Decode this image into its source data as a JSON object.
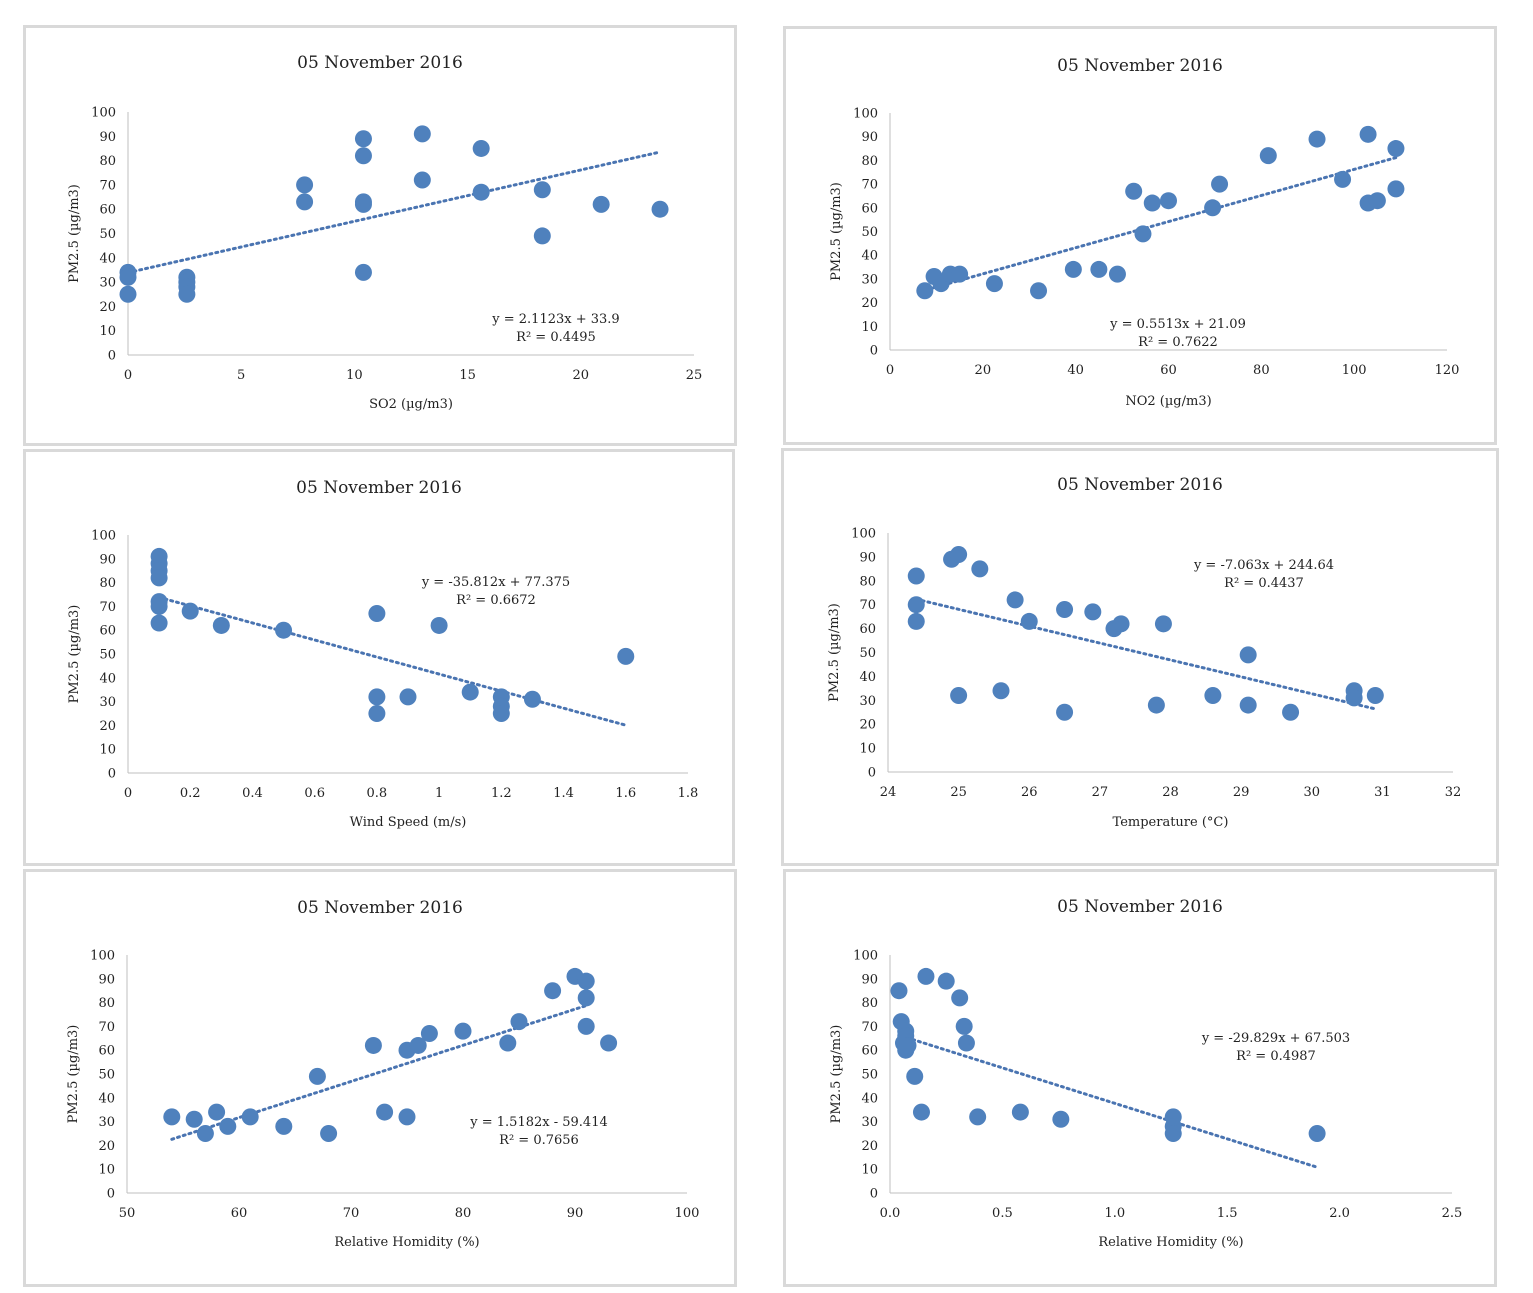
{
  "chart_data": [
    {
      "type": "scatter",
      "title": "05 November 2016",
      "xlabel": "SO2 (µg/m3)",
      "ylabel": "PM2.5 (µg/m3)",
      "xlim": [
        0,
        25
      ],
      "ylim": [
        0,
        100
      ],
      "xticks": [
        "0",
        "5",
        "10",
        "15",
        "20",
        "25"
      ],
      "yticks": [
        "0",
        "10",
        "20",
        "30",
        "40",
        "50",
        "60",
        "70",
        "80",
        "90",
        "100"
      ],
      "eq1": "y = 2.1123x + 33.9",
      "eq2": "R² = 0.4495",
      "trend": {
        "slope": 2.1123,
        "intercept": 33.9,
        "x_range": [
          0,
          23.5
        ]
      },
      "points": [
        [
          0,
          34
        ],
        [
          0,
          32
        ],
        [
          0,
          25
        ],
        [
          2.6,
          32
        ],
        [
          2.6,
          30
        ],
        [
          2.6,
          28
        ],
        [
          2.6,
          25
        ],
        [
          7.8,
          70
        ],
        [
          7.8,
          63
        ],
        [
          10.4,
          89
        ],
        [
          10.4,
          82
        ],
        [
          10.4,
          63
        ],
        [
          10.4,
          62
        ],
        [
          10.4,
          34
        ],
        [
          13,
          91
        ],
        [
          13,
          72
        ],
        [
          15.6,
          85
        ],
        [
          15.6,
          67
        ],
        [
          18.3,
          68
        ],
        [
          18.3,
          49
        ],
        [
          20.9,
          62
        ],
        [
          23.5,
          60
        ]
      ],
      "grid": false,
      "legend": "none"
    },
    {
      "type": "scatter",
      "title": "05 November 2016",
      "xlabel": "NO2 (µg/m3)",
      "ylabel": "PM2.5 (µg/m3)",
      "xlim": [
        0,
        120
      ],
      "ylim": [
        0,
        100
      ],
      "xticks": [
        "0",
        "20",
        "40",
        "60",
        "80",
        "100",
        "120"
      ],
      "yticks": [
        "0",
        "10",
        "20",
        "30",
        "40",
        "50",
        "60",
        "70",
        "80",
        "90",
        "100"
      ],
      "eq1": "y = 0.5513x + 21.09",
      "eq2": "R² = 0.7622",
      "trend": {
        "slope": 0.5513,
        "intercept": 21.09,
        "x_range": [
          9,
          109
        ]
      },
      "points": [
        [
          7.5,
          25
        ],
        [
          9.5,
          31
        ],
        [
          11,
          28
        ],
        [
          13,
          32
        ],
        [
          15,
          32
        ],
        [
          22.5,
          28
        ],
        [
          32,
          25
        ],
        [
          39.5,
          34
        ],
        [
          45,
          34
        ],
        [
          49,
          32
        ],
        [
          52.5,
          67
        ],
        [
          54.5,
          49
        ],
        [
          56.5,
          62
        ],
        [
          60,
          63
        ],
        [
          69.5,
          60
        ],
        [
          71,
          70
        ],
        [
          81.5,
          82
        ],
        [
          92,
          89
        ],
        [
          97.5,
          72
        ],
        [
          103,
          91
        ],
        [
          103,
          62
        ],
        [
          105,
          63
        ],
        [
          109,
          85
        ],
        [
          109,
          68
        ]
      ],
      "grid": false,
      "legend": "none"
    },
    {
      "type": "scatter",
      "title": "05 November 2016",
      "xlabel": "Wind Speed (m/s)",
      "ylabel": "PM2.5 (µg/m3)",
      "xlim": [
        0,
        1.8
      ],
      "ylim": [
        0,
        100
      ],
      "xticks": [
        "0",
        "0.2",
        "0.4",
        "0.6",
        "0.8",
        "1",
        "1.2",
        "1.4",
        "1.6",
        "1.8"
      ],
      "yticks": [
        "0",
        "10",
        "20",
        "30",
        "40",
        "50",
        "60",
        "70",
        "80",
        "90",
        "100"
      ],
      "eq1": "y = -35.812x + 77.375",
      "eq2": "R² = 0.6672",
      "trend": {
        "slope": -35.812,
        "intercept": 77.375,
        "x_range": [
          0.1,
          1.6
        ]
      },
      "points": [
        [
          0.1,
          91
        ],
        [
          0.1,
          88
        ],
        [
          0.1,
          85
        ],
        [
          0.1,
          82
        ],
        [
          0.1,
          72
        ],
        [
          0.1,
          70
        ],
        [
          0.1,
          63
        ],
        [
          0.2,
          68
        ],
        [
          0.3,
          62
        ],
        [
          0.5,
          60
        ],
        [
          0.8,
          67
        ],
        [
          0.8,
          32
        ],
        [
          0.8,
          25
        ],
        [
          0.9,
          32
        ],
        [
          1,
          62
        ],
        [
          1.1,
          34
        ],
        [
          1.2,
          32
        ],
        [
          1.2,
          28
        ],
        [
          1.2,
          25
        ],
        [
          1.3,
          31
        ],
        [
          1.6,
          49
        ]
      ],
      "grid": false,
      "legend": "none"
    },
    {
      "type": "scatter",
      "title": "05 November 2016",
      "xlabel": "Temperature (°C)",
      "ylabel": "PM2.5 (µg/m3)",
      "xlim": [
        24,
        32
      ],
      "ylim": [
        0,
        100
      ],
      "xticks": [
        "24",
        "25",
        "26",
        "27",
        "28",
        "29",
        "30",
        "31",
        "32"
      ],
      "yticks": [
        "0",
        "10",
        "20",
        "30",
        "40",
        "50",
        "60",
        "70",
        "80",
        "90",
        "100"
      ],
      "eq1": "y = -7.063x + 244.64",
      "eq2": "R² = 0.4437",
      "trend": {
        "slope": -7.063,
        "intercept": 244.64,
        "x_range": [
          24.4,
          30.9
        ]
      },
      "points": [
        [
          24.4,
          82
        ],
        [
          24.4,
          70
        ],
        [
          24.4,
          63
        ],
        [
          24.9,
          89
        ],
        [
          25,
          91
        ],
        [
          25,
          32
        ],
        [
          25.3,
          85
        ],
        [
          25.6,
          34
        ],
        [
          25.8,
          72
        ],
        [
          26,
          63
        ],
        [
          26.5,
          68
        ],
        [
          26.5,
          25
        ],
        [
          26.9,
          67
        ],
        [
          27.2,
          60
        ],
        [
          27.3,
          62
        ],
        [
          27.8,
          28
        ],
        [
          27.9,
          62
        ],
        [
          28.6,
          32
        ],
        [
          29.1,
          49
        ],
        [
          29.1,
          28
        ],
        [
          29.7,
          25
        ],
        [
          30.6,
          34
        ],
        [
          30.6,
          31
        ],
        [
          30.9,
          32
        ]
      ],
      "grid": false,
      "legend": "none"
    },
    {
      "type": "scatter",
      "title": "05 November 2016",
      "xlabel": "Relative Homidity (%)",
      "ylabel": "PM2.5 (µg/m3)",
      "xlim": [
        50,
        100
      ],
      "ylim": [
        0,
        100
      ],
      "xticks": [
        "50",
        "60",
        "70",
        "80",
        "90",
        "100"
      ],
      "yticks": [
        "0",
        "10",
        "20",
        "30",
        "40",
        "50",
        "60",
        "70",
        "80",
        "90",
        "100"
      ],
      "eq1": "y = 1.5182x - 59.414",
      "eq2": "R² = 0.7656",
      "trend": {
        "slope": 1.5182,
        "intercept": -59.414,
        "x_range": [
          54,
          91
        ]
      },
      "points": [
        [
          54,
          32
        ],
        [
          56,
          31
        ],
        [
          57,
          25
        ],
        [
          58,
          34
        ],
        [
          59,
          28
        ],
        [
          61,
          32
        ],
        [
          64,
          28
        ],
        [
          67,
          49
        ],
        [
          68,
          25
        ],
        [
          72,
          62
        ],
        [
          73,
          34
        ],
        [
          75,
          60
        ],
        [
          75,
          32
        ],
        [
          76,
          62
        ],
        [
          77,
          67
        ],
        [
          80,
          68
        ],
        [
          84,
          63
        ],
        [
          85,
          72
        ],
        [
          88,
          85
        ],
        [
          90,
          91
        ],
        [
          91,
          89
        ],
        [
          91,
          82
        ],
        [
          91,
          70
        ],
        [
          93,
          63
        ]
      ],
      "grid": false,
      "legend": "none"
    },
    {
      "type": "scatter",
      "title": "05 November 2016",
      "xlabel": "Relative Homidity (%)",
      "ylabel": "PM2.5 (µg/m3)",
      "xlim": [
        0,
        2.5
      ],
      "ylim": [
        0,
        100
      ],
      "xticks": [
        "0.0",
        "0.5",
        "1.0",
        "1.5",
        "2.0",
        "2.5"
      ],
      "yticks": [
        "0",
        "10",
        "20",
        "30",
        "40",
        "50",
        "60",
        "70",
        "80",
        "90",
        "100"
      ],
      "eq1": "y = -29.829x + 67.503",
      "eq2": "R² = 0.4987",
      "trend": {
        "slope": -29.829,
        "intercept": 67.503,
        "x_range": [
          0.05,
          1.9
        ]
      },
      "points": [
        [
          0.04,
          85
        ],
        [
          0.05,
          72
        ],
        [
          0.06,
          63
        ],
        [
          0.07,
          68
        ],
        [
          0.07,
          66
        ],
        [
          0.07,
          60
        ],
        [
          0.08,
          62
        ],
        [
          0.11,
          49
        ],
        [
          0.14,
          34
        ],
        [
          0.16,
          91
        ],
        [
          0.25,
          89
        ],
        [
          0.31,
          82
        ],
        [
          0.33,
          70
        ],
        [
          0.34,
          63
        ],
        [
          0.39,
          32
        ],
        [
          0.58,
          34
        ],
        [
          0.76,
          31
        ],
        [
          1.26,
          32
        ],
        [
          1.26,
          28
        ],
        [
          1.26,
          25
        ],
        [
          1.9,
          25
        ]
      ],
      "grid": false,
      "legend": "none"
    }
  ]
}
